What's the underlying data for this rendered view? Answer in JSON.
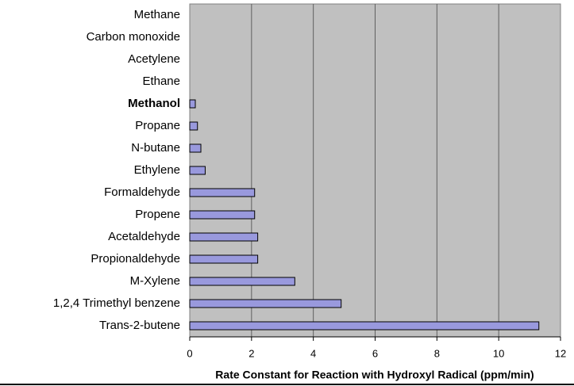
{
  "chart_data": {
    "type": "barh",
    "xlabel": "Rate Constant for Reaction with Hydroxyl Radical (ppm/min)",
    "categories": [
      "Methane",
      "Carbon monoxide",
      "Acetylene",
      "Ethane",
      "Methanol",
      "Propane",
      "N-butane",
      "Ethylene",
      "Formaldehyde",
      "Propene",
      "Acetaldehyde",
      "Propionaldehyde",
      "M-Xylene",
      "1,2,4 Trimethyl benzene",
      "Trans-2-butene"
    ],
    "values": [
      0,
      0,
      0,
      0,
      0.18,
      0.25,
      0.36,
      0.5,
      2.1,
      2.1,
      2.2,
      2.2,
      3.4,
      4.9,
      11.3
    ],
    "category_colors": [
      "#000000",
      "#000000",
      "#000000",
      "#000000",
      "#e8262a",
      "#000000",
      "#000000",
      "#000000",
      "#000000",
      "#000000",
      "#000000",
      "#000000",
      "#000000",
      "#000000",
      "#000000"
    ],
    "color": "#9999dd",
    "xlim": [
      0,
      12
    ],
    "xticks": [
      0,
      2,
      4,
      6,
      8,
      10,
      12
    ],
    "grid": true
  }
}
